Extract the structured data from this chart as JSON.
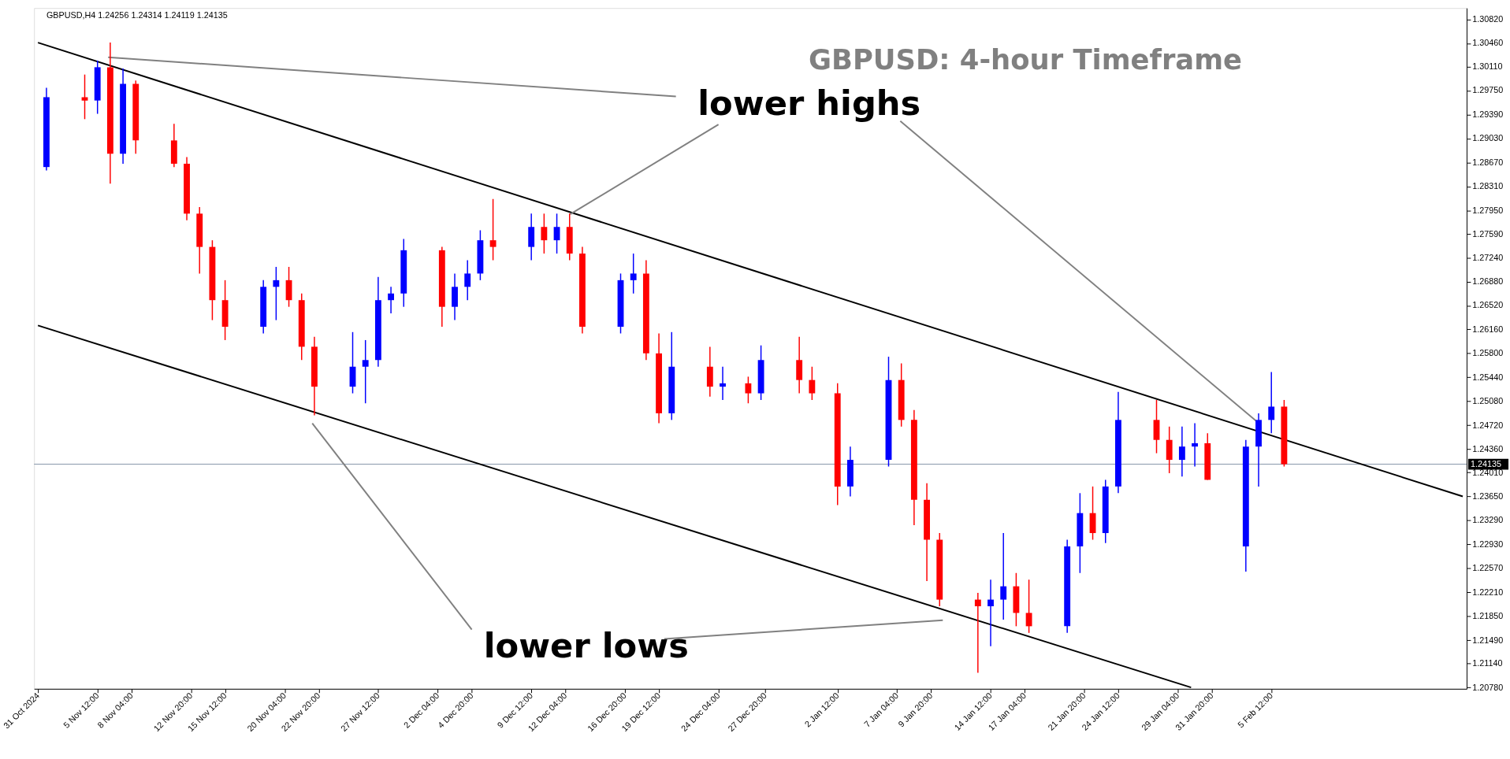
{
  "chart_data": {
    "type": "candlestick",
    "title": "GBPUSD: 4-hour Timeframe",
    "subtitle": "GBPUSD,H4  1.24256 1.24314 1.24119 1.24135",
    "xlim": [
      "2024-10-31T20:00",
      "2025-02-20T12:00"
    ],
    "ylim": [
      1.2076,
      1.3099
    ],
    "xticks": [
      {
        "value": "2024-10-31T20:00",
        "label": "31 Oct 2024"
      },
      {
        "value": "2024-11-05T12:00",
        "label": "5 Nov 12:00"
      },
      {
        "value": "2024-11-08T04:00",
        "label": "8 Nov 04:00"
      },
      {
        "value": "2024-11-12T20:00",
        "label": "12 Nov 20:00"
      },
      {
        "value": "2024-11-15T12:00",
        "label": "15 Nov 12:00"
      },
      {
        "value": "2024-11-20T04:00",
        "label": "20 Nov 04:00"
      },
      {
        "value": "2024-11-22T20:00",
        "label": "22 Nov 20:00"
      },
      {
        "value": "2024-11-27T12:00",
        "label": "27 Nov 12:00"
      },
      {
        "value": "2024-12-02T04:00",
        "label": "2 Dec 04:00"
      },
      {
        "value": "2024-12-04T20:00",
        "label": "4 Dec 20:00"
      },
      {
        "value": "2024-12-09T12:00",
        "label": "9 Dec 12:00"
      },
      {
        "value": "2024-12-12T04:00",
        "label": "12 Dec 04:00"
      },
      {
        "value": "2024-12-16T20:00",
        "label": "16 Dec 20:00"
      },
      {
        "value": "2024-12-19T12:00",
        "label": "19 Dec 12:00"
      },
      {
        "value": "2024-12-24T04:00",
        "label": "24 Dec 04:00"
      },
      {
        "value": "2024-12-27T20:00",
        "label": "27 Dec 20:00"
      },
      {
        "value": "2025-01-02T12:00",
        "label": "2 Jan 12:00"
      },
      {
        "value": "2025-01-07T04:00",
        "label": "7 Jan 04:00"
      },
      {
        "value": "2025-01-09T20:00",
        "label": "9 Jan 20:00"
      },
      {
        "value": "2025-01-14T12:00",
        "label": "14 Jan 12:00"
      },
      {
        "value": "2025-01-17T04:00",
        "label": "17 Jan 04:00"
      },
      {
        "value": "2025-01-21T20:00",
        "label": "21 Jan 20:00"
      },
      {
        "value": "2025-01-24T12:00",
        "label": "24 Jan 12:00"
      },
      {
        "value": "2025-01-29T04:00",
        "label": "29 Jan 04:00"
      },
      {
        "value": "2025-01-31T20:00",
        "label": "31 Jan 20:00"
      },
      {
        "value": "2025-02-05T12:00",
        "label": "5 Feb 12:00"
      }
    ],
    "yticks": [
      {
        "value": 1.2078,
        "label": "1.20780"
      },
      {
        "value": 1.2114,
        "label": "1.21140"
      },
      {
        "value": 1.2149,
        "label": "1.21490"
      },
      {
        "value": 1.2185,
        "label": "1.21850"
      },
      {
        "value": 1.2221,
        "label": "1.22210"
      },
      {
        "value": 1.2257,
        "label": "1.22570"
      },
      {
        "value": 1.2293,
        "label": "1.22930"
      },
      {
        "value": 1.2329,
        "label": "1.23290"
      },
      {
        "value": 1.2365,
        "label": "1.23650"
      },
      {
        "value": 1.2401,
        "label": "1.24010"
      },
      {
        "value": 1.2436,
        "label": "1.24360"
      },
      {
        "value": 1.2472,
        "label": "1.24720"
      },
      {
        "value": 1.2508,
        "label": "1.25080"
      },
      {
        "value": 1.2544,
        "label": "1.25440"
      },
      {
        "value": 1.258,
        "label": "1.25800"
      },
      {
        "value": 1.2616,
        "label": "1.26160"
      },
      {
        "value": 1.2652,
        "label": "1.26520"
      },
      {
        "value": 1.2688,
        "label": "1.26880"
      },
      {
        "value": 1.2724,
        "label": "1.27240"
      },
      {
        "value": 1.2759,
        "label": "1.27590"
      },
      {
        "value": 1.2795,
        "label": "1.27950"
      },
      {
        "value": 1.2831,
        "label": "1.28310"
      },
      {
        "value": 1.2867,
        "label": "1.28670"
      },
      {
        "value": 1.2903,
        "label": "1.29030"
      },
      {
        "value": 1.2939,
        "label": "1.29390"
      },
      {
        "value": 1.2975,
        "label": "1.29750"
      },
      {
        "value": 1.3011,
        "label": "1.30110"
      },
      {
        "value": 1.3046,
        "label": "1.30460"
      },
      {
        "value": 1.3082,
        "label": "1.30820"
      }
    ],
    "grid": false,
    "ref_lines": [
      {
        "axis": "y",
        "value": 1.24135,
        "label": "1.24135",
        "color": "#8594a8"
      }
    ],
    "annotations": [
      "lower highs",
      "lower lows"
    ],
    "series": [
      {
        "type": "line",
        "color": "#000000",
        "x": [
          "2024-10-31T20:00",
          "2025-02-20T12:00"
        ],
        "values": [
          1.3047,
          1.2365
        ]
      },
      {
        "type": "line",
        "color": "#000000",
        "x": [
          "2024-10-31T20:00",
          "2025-01-30T05:00"
        ],
        "values": [
          1.2622,
          1.2078
        ]
      },
      {
        "type": "line",
        "color": "#808080",
        "x": [
          "2024-11-06T08:00",
          "2024-12-20T20:00"
        ],
        "values": [
          1.3025,
          1.2966
        ]
      },
      {
        "type": "line",
        "color": "#808080",
        "x": [
          "2024-12-12T13:00",
          "2024-12-24T04:00"
        ],
        "values": [
          1.2789,
          1.2924
        ]
      },
      {
        "type": "line",
        "color": "#808080",
        "x": [
          "2025-01-07T10:00",
          "2025-02-04T08:00"
        ],
        "values": [
          1.2929,
          1.2478
        ]
      },
      {
        "type": "line",
        "color": "#808080",
        "x": [
          "2024-11-22T08:00",
          "2024-12-04T20:00"
        ],
        "values": [
          1.2475,
          1.2165
        ]
      },
      {
        "type": "line",
        "color": "#808080",
        "x": [
          "2024-12-19T22:00",
          "2025-01-10T18:00"
        ],
        "values": [
          1.2151,
          1.2179
        ]
      },
      {
        "type": "candlestick",
        "color": "#0000ff",
        "x": [
          "2024-11-01T12:00",
          "2024-11-05T12:00",
          "2024-11-07T12:00",
          "2024-11-18T12:00",
          "2024-11-19T12:00",
          "2024-11-25T12:00",
          "2024-11-26T12:00",
          "2024-11-27T12:00",
          "2024-11-28T12:00",
          "2024-11-29T12:00",
          "2024-12-03T12:00",
          "2024-12-04T12:00",
          "2024-12-05T12:00",
          "2024-12-09T12:00",
          "2024-12-11T12:00",
          "2024-12-16T12:00",
          "2024-12-17T12:00",
          "2024-12-20T12:00",
          "2024-12-24T12:00",
          "2024-12-27T12:00",
          "2025-01-03T12:00",
          "2025-01-06T12:00",
          "2025-01-14T12:00",
          "2025-01-15T12:00",
          "2025-01-20T12:00",
          "2025-01-21T12:00",
          "2025-01-23T12:00",
          "2025-01-24T12:00",
          "2025-01-29T12:00",
          "2025-01-30T12:00",
          "2025-02-03T12:00",
          "2025-02-04T12:00",
          "2025-02-05T12:00"
        ],
        "ohlc": [
          [
            1.286,
            1.2979,
            1.2855,
            1.2965
          ],
          [
            1.296,
            1.302,
            1.294,
            1.301
          ],
          [
            1.288,
            1.3008,
            1.2865,
            1.2985
          ],
          [
            1.262,
            1.269,
            1.261,
            1.268
          ],
          [
            1.268,
            1.271,
            1.263,
            1.269
          ],
          [
            1.253,
            1.2612,
            1.252,
            1.256
          ],
          [
            1.256,
            1.26,
            1.2505,
            1.257
          ],
          [
            1.257,
            1.2695,
            1.256,
            1.266
          ],
          [
            1.266,
            1.268,
            1.264,
            1.267
          ],
          [
            1.267,
            1.2752,
            1.265,
            1.2735
          ],
          [
            1.265,
            1.27,
            1.263,
            1.268
          ],
          [
            1.268,
            1.272,
            1.266,
            1.27
          ],
          [
            1.27,
            1.2765,
            1.269,
            1.275
          ],
          [
            1.274,
            1.279,
            1.272,
            1.277
          ],
          [
            1.275,
            1.279,
            1.273,
            1.277
          ],
          [
            1.262,
            1.27,
            1.261,
            1.269
          ],
          [
            1.269,
            1.273,
            1.267,
            1.27
          ],
          [
            1.249,
            1.2612,
            1.248,
            1.256
          ],
          [
            1.253,
            1.256,
            1.251,
            1.2535
          ],
          [
            1.252,
            1.2592,
            1.251,
            1.257
          ],
          [
            1.238,
            1.244,
            1.2365,
            1.242
          ],
          [
            1.242,
            1.2575,
            1.241,
            1.254
          ],
          [
            1.22,
            1.224,
            1.214,
            1.221
          ],
          [
            1.221,
            1.231,
            1.218,
            1.223
          ],
          [
            1.217,
            1.23,
            1.216,
            1.229
          ],
          [
            1.229,
            1.237,
            1.225,
            1.234
          ],
          [
            1.231,
            1.239,
            1.2295,
            1.238
          ],
          [
            1.238,
            1.2522,
            1.237,
            1.248
          ],
          [
            1.242,
            1.247,
            1.2395,
            1.244
          ],
          [
            1.244,
            1.2475,
            1.241,
            1.2445
          ],
          [
            1.229,
            1.245,
            1.2252,
            1.244
          ],
          [
            1.244,
            1.249,
            1.238,
            1.248
          ],
          [
            1.248,
            1.2552,
            1.246,
            1.25
          ]
        ]
      },
      {
        "type": "candlestick",
        "color": "#ff0000",
        "x": [
          "2024-11-04T12:00",
          "2024-11-06T12:00",
          "2024-11-08T12:00",
          "2024-11-11T12:00",
          "2024-11-12T12:00",
          "2024-11-13T12:00",
          "2024-11-14T12:00",
          "2024-11-15T12:00",
          "2024-11-20T12:00",
          "2024-11-21T12:00",
          "2024-11-22T12:00",
          "2024-12-02T12:00",
          "2024-12-06T12:00",
          "2024-12-10T12:00",
          "2024-12-12T12:00",
          "2024-12-13T12:00",
          "2024-12-18T12:00",
          "2024-12-19T12:00",
          "2024-12-23T12:00",
          "2024-12-26T12:00",
          "2024-12-30T12:00",
          "2024-12-31T12:00",
          "2025-01-02T12:00",
          "2025-01-07T12:00",
          "2025-01-08T12:00",
          "2025-01-09T12:00",
          "2025-01-10T12:00",
          "2025-01-13T12:00",
          "2025-01-16T12:00",
          "2025-01-17T12:00",
          "2025-01-22T12:00",
          "2025-01-27T12:00",
          "2025-01-28T12:00",
          "2025-01-31T12:00",
          "2025-02-06T12:00"
        ],
        "ohlc": [
          [
            1.2965,
            1.2999,
            1.2932,
            1.296
          ],
          [
            1.301,
            1.3047,
            1.2835,
            1.288
          ],
          [
            1.2985,
            1.299,
            1.288,
            1.29
          ],
          [
            1.29,
            1.2925,
            1.286,
            1.2865
          ],
          [
            1.2865,
            1.2875,
            1.278,
            1.279
          ],
          [
            1.279,
            1.28,
            1.27,
            1.274
          ],
          [
            1.274,
            1.275,
            1.263,
            1.266
          ],
          [
            1.266,
            1.269,
            1.26,
            1.262
          ],
          [
            1.269,
            1.271,
            1.265,
            1.266
          ],
          [
            1.266,
            1.267,
            1.257,
            1.259
          ],
          [
            1.259,
            1.2605,
            1.2487,
            1.253
          ],
          [
            1.2735,
            1.274,
            1.262,
            1.265
          ],
          [
            1.275,
            1.2812,
            1.272,
            1.274
          ],
          [
            1.277,
            1.279,
            1.273,
            1.275
          ],
          [
            1.277,
            1.279,
            1.272,
            1.273
          ],
          [
            1.273,
            1.274,
            1.261,
            1.262
          ],
          [
            1.27,
            1.272,
            1.257,
            1.258
          ],
          [
            1.258,
            1.261,
            1.2475,
            1.249
          ],
          [
            1.256,
            1.259,
            1.2515,
            1.253
          ],
          [
            1.2535,
            1.2545,
            1.2505,
            1.252
          ],
          [
            1.257,
            1.2605,
            1.252,
            1.254
          ],
          [
            1.254,
            1.256,
            1.251,
            1.252
          ],
          [
            1.252,
            1.2535,
            1.2352,
            1.238
          ],
          [
            1.254,
            1.2565,
            1.247,
            1.248
          ],
          [
            1.248,
            1.2495,
            1.2322,
            1.236
          ],
          [
            1.236,
            1.2385,
            1.2238,
            1.23
          ],
          [
            1.23,
            1.231,
            1.22,
            1.221
          ],
          [
            1.221,
            1.222,
            1.21,
            1.22
          ],
          [
            1.223,
            1.225,
            1.217,
            1.219
          ],
          [
            1.219,
            1.224,
            1.216,
            1.217
          ],
          [
            1.234,
            1.238,
            1.23,
            1.231
          ],
          [
            1.248,
            1.251,
            1.243,
            1.245
          ],
          [
            1.245,
            1.247,
            1.24,
            1.242
          ],
          [
            1.2445,
            1.246,
            1.239,
            1.239
          ],
          [
            1.25,
            1.251,
            1.241,
            1.24135
          ]
        ]
      }
    ]
  }
}
